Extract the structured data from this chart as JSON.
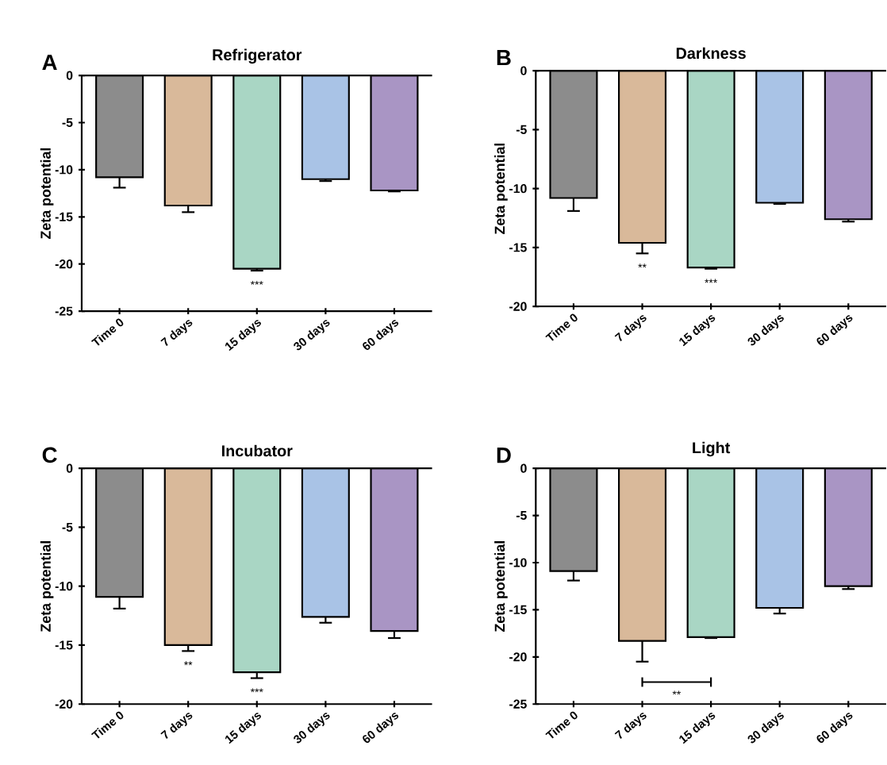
{
  "chart_data": [
    {
      "type": "bar",
      "title": "Refrigerator",
      "ylabel": "Zeta potential",
      "categories": [
        "Time 0",
        "7 days",
        "15 days",
        "30 days",
        "60 days"
      ],
      "values": [
        -10.8,
        -13.8,
        -20.5,
        -11.0,
        -12.2
      ],
      "errors": [
        1.1,
        0.7,
        0.2,
        0.2,
        0.1
      ],
      "colors": [
        "#8c8c8c",
        "#d9b99a",
        "#a9d6c4",
        "#a9c3e6",
        "#a995c4"
      ],
      "ylim": [
        -25,
        0
      ],
      "yticks": [
        0,
        -5,
        -10,
        -15,
        -20,
        -25
      ],
      "annotations": [
        "A",
        "***"
      ]
    },
    {
      "type": "bar",
      "title": "Darkness",
      "ylabel": "Zeta potential",
      "categories": [
        "Time 0",
        "7 days",
        "15 days",
        "30 days",
        "60 days"
      ],
      "values": [
        -10.8,
        -14.6,
        -16.7,
        -11.2,
        -12.6
      ],
      "errors": [
        1.1,
        0.9,
        0.1,
        0.1,
        0.2
      ],
      "colors": [
        "#8c8c8c",
        "#d9b99a",
        "#a9d6c4",
        "#a9c3e6",
        "#a995c4"
      ],
      "ylim": [
        -20,
        0
      ],
      "yticks": [
        0,
        -5,
        -10,
        -15,
        -20
      ],
      "annotations": [
        "B",
        "**",
        "***"
      ]
    },
    {
      "type": "bar",
      "title": "Incubator",
      "ylabel": "Zeta potential",
      "categories": [
        "Time 0",
        "7 days",
        "15 days",
        "30 days",
        "60 days"
      ],
      "values": [
        -10.9,
        -15.0,
        -17.3,
        -12.6,
        -13.8
      ],
      "errors": [
        1.0,
        0.5,
        0.5,
        0.5,
        0.6
      ],
      "colors": [
        "#8c8c8c",
        "#d9b99a",
        "#a9d6c4",
        "#a9c3e6",
        "#a995c4"
      ],
      "ylim": [
        -20,
        0
      ],
      "yticks": [
        0,
        -5,
        -10,
        -15,
        -20
      ],
      "annotations": [
        "C",
        "**",
        "***"
      ]
    },
    {
      "type": "bar",
      "title": "Light",
      "ylabel": "Zeta potential",
      "categories": [
        "Time 0",
        "7 days",
        "15 days",
        "30 days",
        "60 days"
      ],
      "values": [
        -10.9,
        -18.3,
        -17.9,
        -14.8,
        -12.5
      ],
      "errors": [
        1.0,
        2.2,
        0.1,
        0.6,
        0.3
      ],
      "colors": [
        "#8c8c8c",
        "#d9b99a",
        "#a9d6c4",
        "#a9c3e6",
        "#a995c4"
      ],
      "ylim": [
        -25,
        0
      ],
      "yticks": [
        0,
        -5,
        -10,
        -15,
        -20,
        -25
      ],
      "annotations": [
        "D",
        "**"
      ]
    }
  ]
}
